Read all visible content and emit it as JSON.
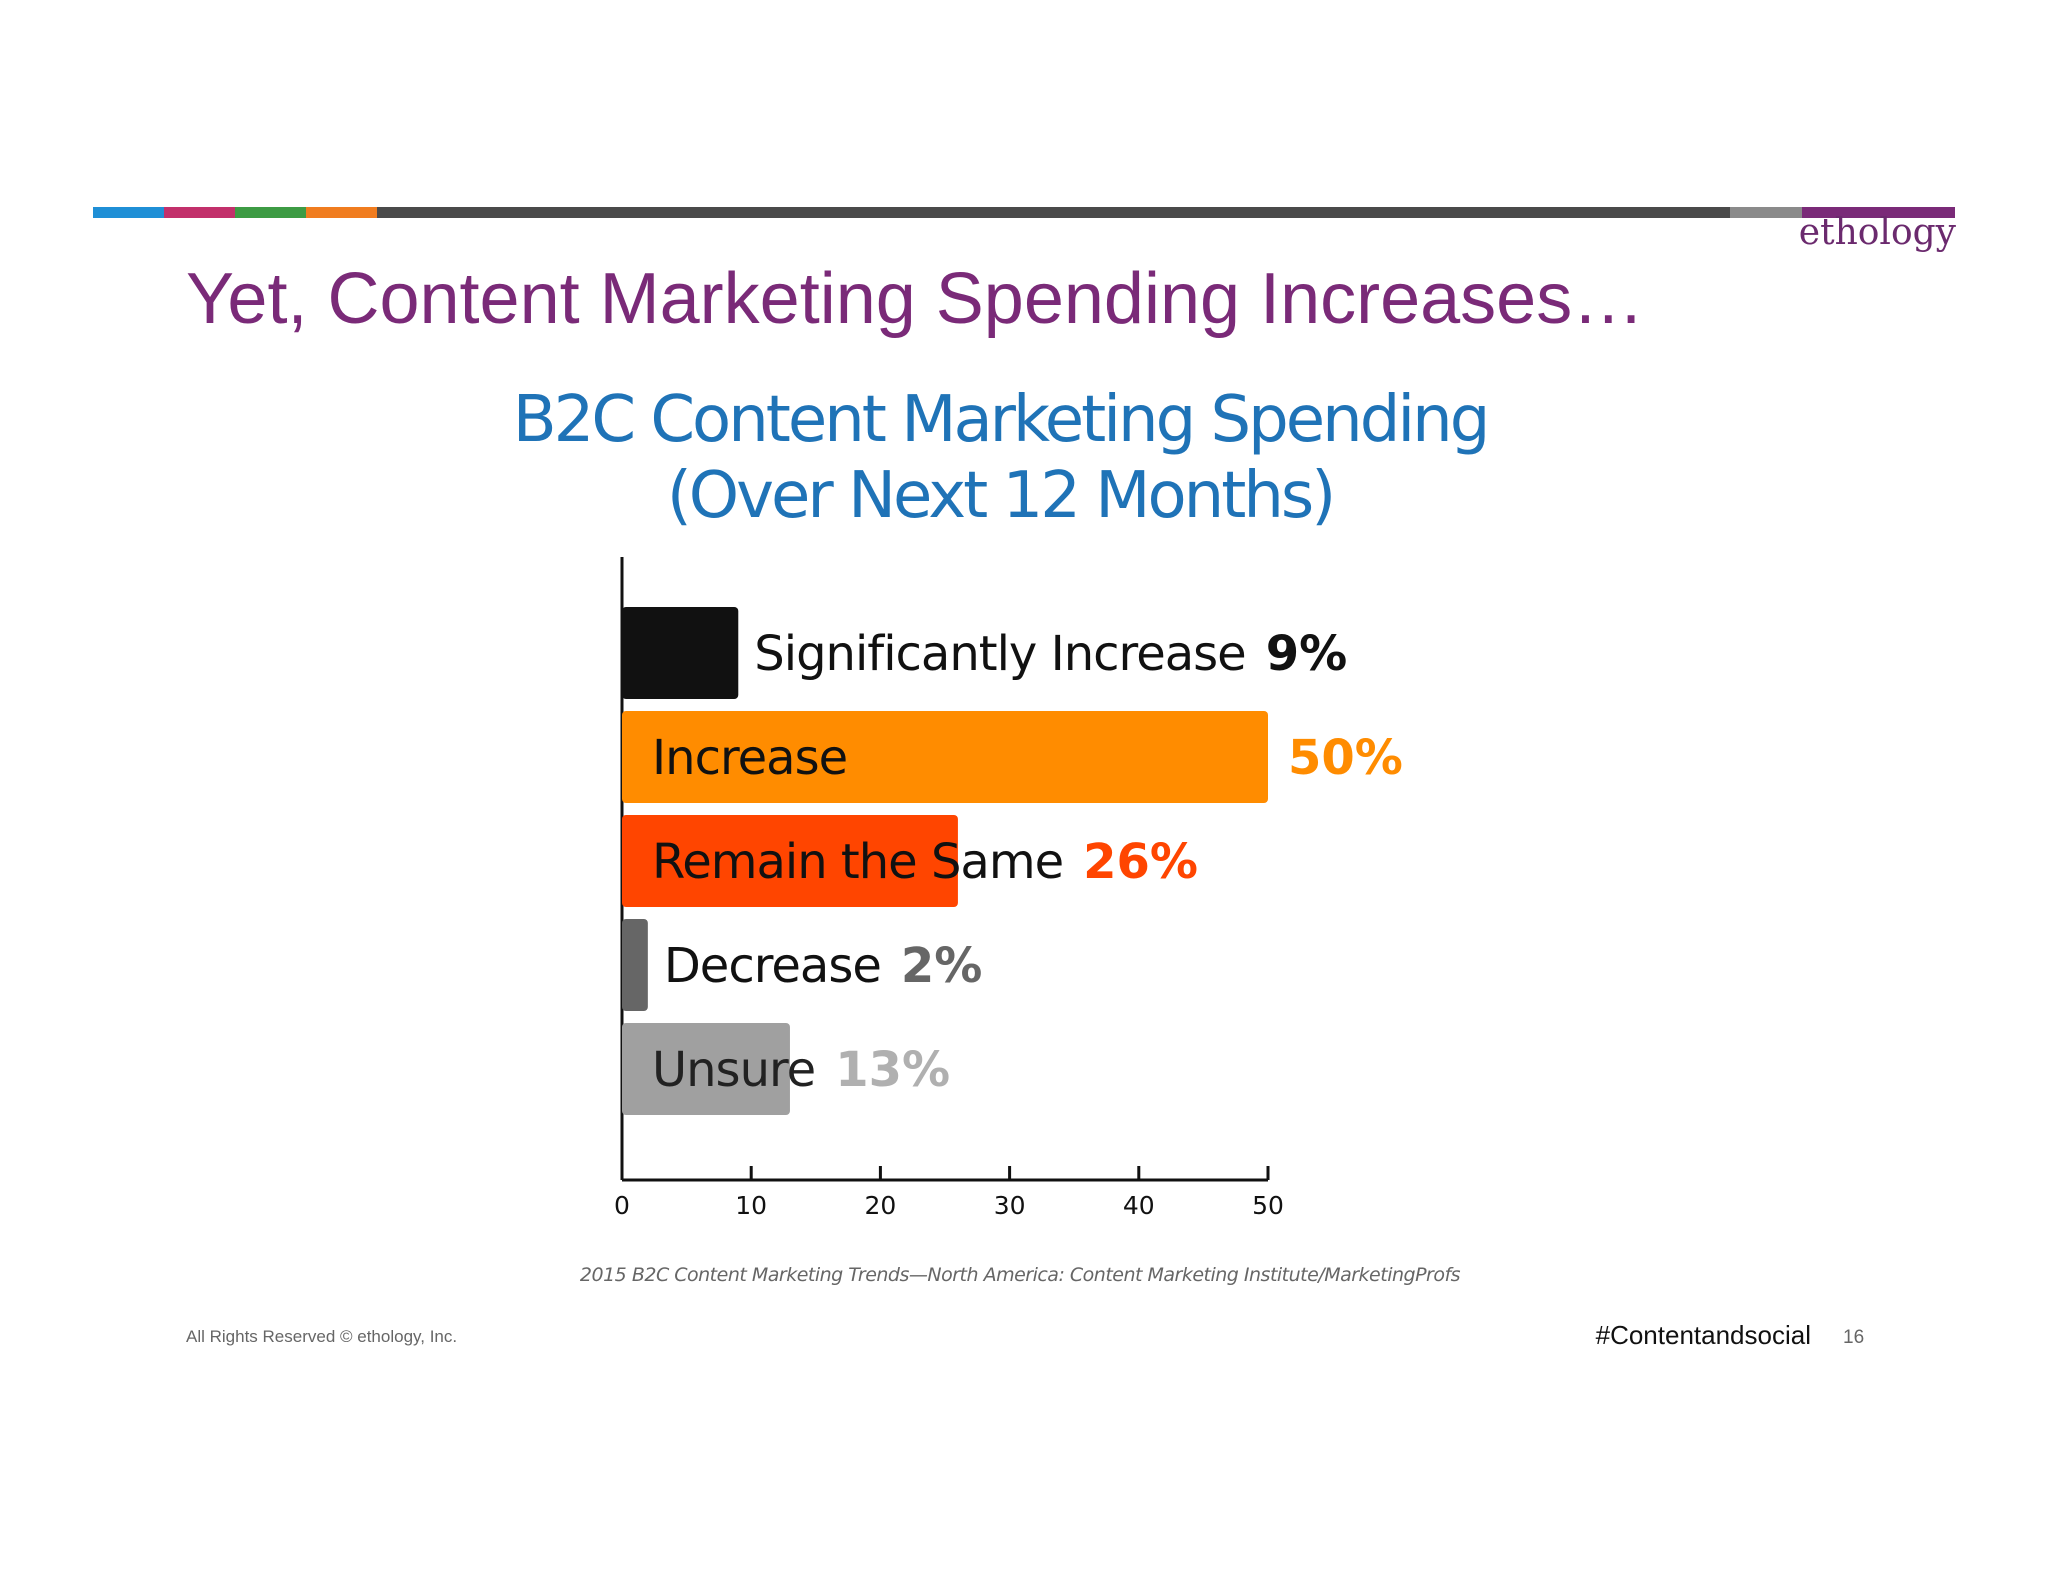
{
  "slide": {
    "title": "Yet, Content Marketing Spending Increases…",
    "logo": "ethology",
    "footer_left": "All Rights Reserved © ethology, Inc.",
    "footer_tag": "#Contentandsocial",
    "page_number": "16",
    "top_bar_colors": [
      "#1f8fd6",
      "#c2306b",
      "#3d9b44",
      "#f07c1f",
      "#4a4a4a",
      "#8a8a8a",
      "#7a2a78"
    ]
  },
  "chart_data": {
    "type": "bar",
    "orientation": "horizontal",
    "title_lines": [
      "B2C Content Marketing Spending",
      "(Over Next 12 Months)"
    ],
    "categories": [
      "Significantly Increase",
      "Increase",
      "Remain the Same",
      "Decrease",
      "Unsure"
    ],
    "values": [
      9,
      50,
      26,
      2,
      13
    ],
    "value_labels": [
      "9%",
      "50%",
      "26%",
      "2%",
      "13%"
    ],
    "bar_colors": [
      "#111111",
      "#ff8c00",
      "#ff4500",
      "#666666",
      "#a0a0a0"
    ],
    "value_label_colors": [
      "#111111",
      "#ff8c00",
      "#ff4500",
      "#666666",
      "#b0b0b0"
    ],
    "xlim": [
      0,
      50
    ],
    "xticks": [
      "0",
      "10",
      "20",
      "30",
      "40",
      "50"
    ],
    "grid": false,
    "source": "2015 B2C Content Marketing Trends—North America: Content Marketing Institute/MarketingProfs"
  }
}
